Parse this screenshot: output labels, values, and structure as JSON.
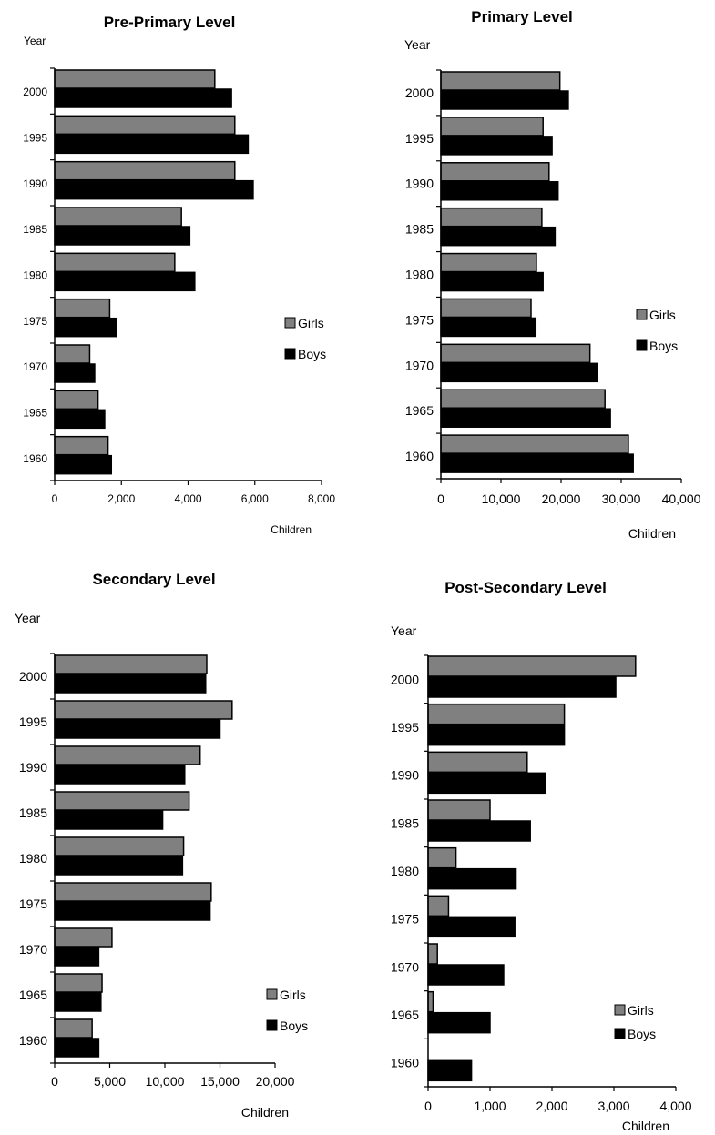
{
  "chart_data": [
    {
      "type": "bar",
      "orientation": "horizontal",
      "title": "Pre-Primary Level",
      "ylabel": "Year",
      "xlabel": "Children",
      "categories": [
        "2000",
        "1995",
        "1990",
        "1985",
        "1980",
        "1975",
        "1970",
        "1965",
        "1960"
      ],
      "series": [
        {
          "name": "Girls",
          "values": [
            4800,
            5400,
            5400,
            3800,
            3600,
            1650,
            1050,
            1300,
            1600
          ]
        },
        {
          "name": "Boys",
          "values": [
            5300,
            5800,
            5950,
            4050,
            4200,
            1850,
            1200,
            1500,
            1700
          ]
        }
      ],
      "xlim": [
        0,
        8000
      ],
      "xticks": [
        "0",
        "2,000",
        "4,000",
        "6,000",
        "8,000"
      ],
      "legend": "right",
      "colors": {
        "Girls": "#808080",
        "Boys": "#000000"
      }
    },
    {
      "type": "bar",
      "orientation": "horizontal",
      "title": "Primary Level",
      "ylabel": "Year",
      "xlabel": "Children",
      "categories": [
        "2000",
        "1995",
        "1990",
        "1985",
        "1980",
        "1975",
        "1970",
        "1965",
        "1960"
      ],
      "series": [
        {
          "name": "Girls",
          "values": [
            19800,
            17000,
            18000,
            16800,
            15900,
            15000,
            24800,
            27300,
            31200
          ]
        },
        {
          "name": "Boys",
          "values": [
            21200,
            18500,
            19500,
            19000,
            17000,
            15800,
            26000,
            28200,
            32000
          ]
        }
      ],
      "xlim": [
        0,
        40000
      ],
      "xticks": [
        "0",
        "10,000",
        "20,000",
        "30,000",
        "40,000"
      ],
      "legend": "right",
      "colors": {
        "Girls": "#808080",
        "Boys": "#000000"
      }
    },
    {
      "type": "bar",
      "orientation": "horizontal",
      "title": "Secondary Level",
      "ylabel": "Year",
      "xlabel": "Children",
      "categories": [
        "2000",
        "1995",
        "1990",
        "1985",
        "1980",
        "1975",
        "1970",
        "1965",
        "1960"
      ],
      "series": [
        {
          "name": "Girls",
          "values": [
            13800,
            16100,
            13200,
            12200,
            11700,
            14200,
            5200,
            4300,
            3400
          ]
        },
        {
          "name": "Boys",
          "values": [
            13700,
            15000,
            11800,
            9800,
            11600,
            14100,
            4000,
            4200,
            4000
          ]
        }
      ],
      "xlim": [
        0,
        20000
      ],
      "xticks": [
        "0",
        "5,000",
        "10,000",
        "15,000",
        "20,000"
      ],
      "legend": "bottom-right",
      "colors": {
        "Girls": "#808080",
        "Boys": "#000000"
      }
    },
    {
      "type": "bar",
      "orientation": "horizontal",
      "title": "Post-Secondary Level",
      "ylabel": "Year",
      "xlabel": "Children",
      "categories": [
        "2000",
        "1995",
        "1990",
        "1985",
        "1980",
        "1975",
        "1970",
        "1965",
        "1960"
      ],
      "series": [
        {
          "name": "Girls",
          "values": [
            3350,
            2200,
            1600,
            1000,
            450,
            330,
            150,
            80,
            0
          ]
        },
        {
          "name": "Boys",
          "values": [
            3030,
            2200,
            1900,
            1650,
            1420,
            1400,
            1220,
            1000,
            700
          ]
        }
      ],
      "xlim": [
        0,
        4000
      ],
      "xticks": [
        "0",
        "1,000",
        "2,000",
        "3,000",
        "4,000"
      ],
      "legend": "bottom-right",
      "colors": {
        "Girls": "#808080",
        "Boys": "#000000"
      }
    }
  ]
}
